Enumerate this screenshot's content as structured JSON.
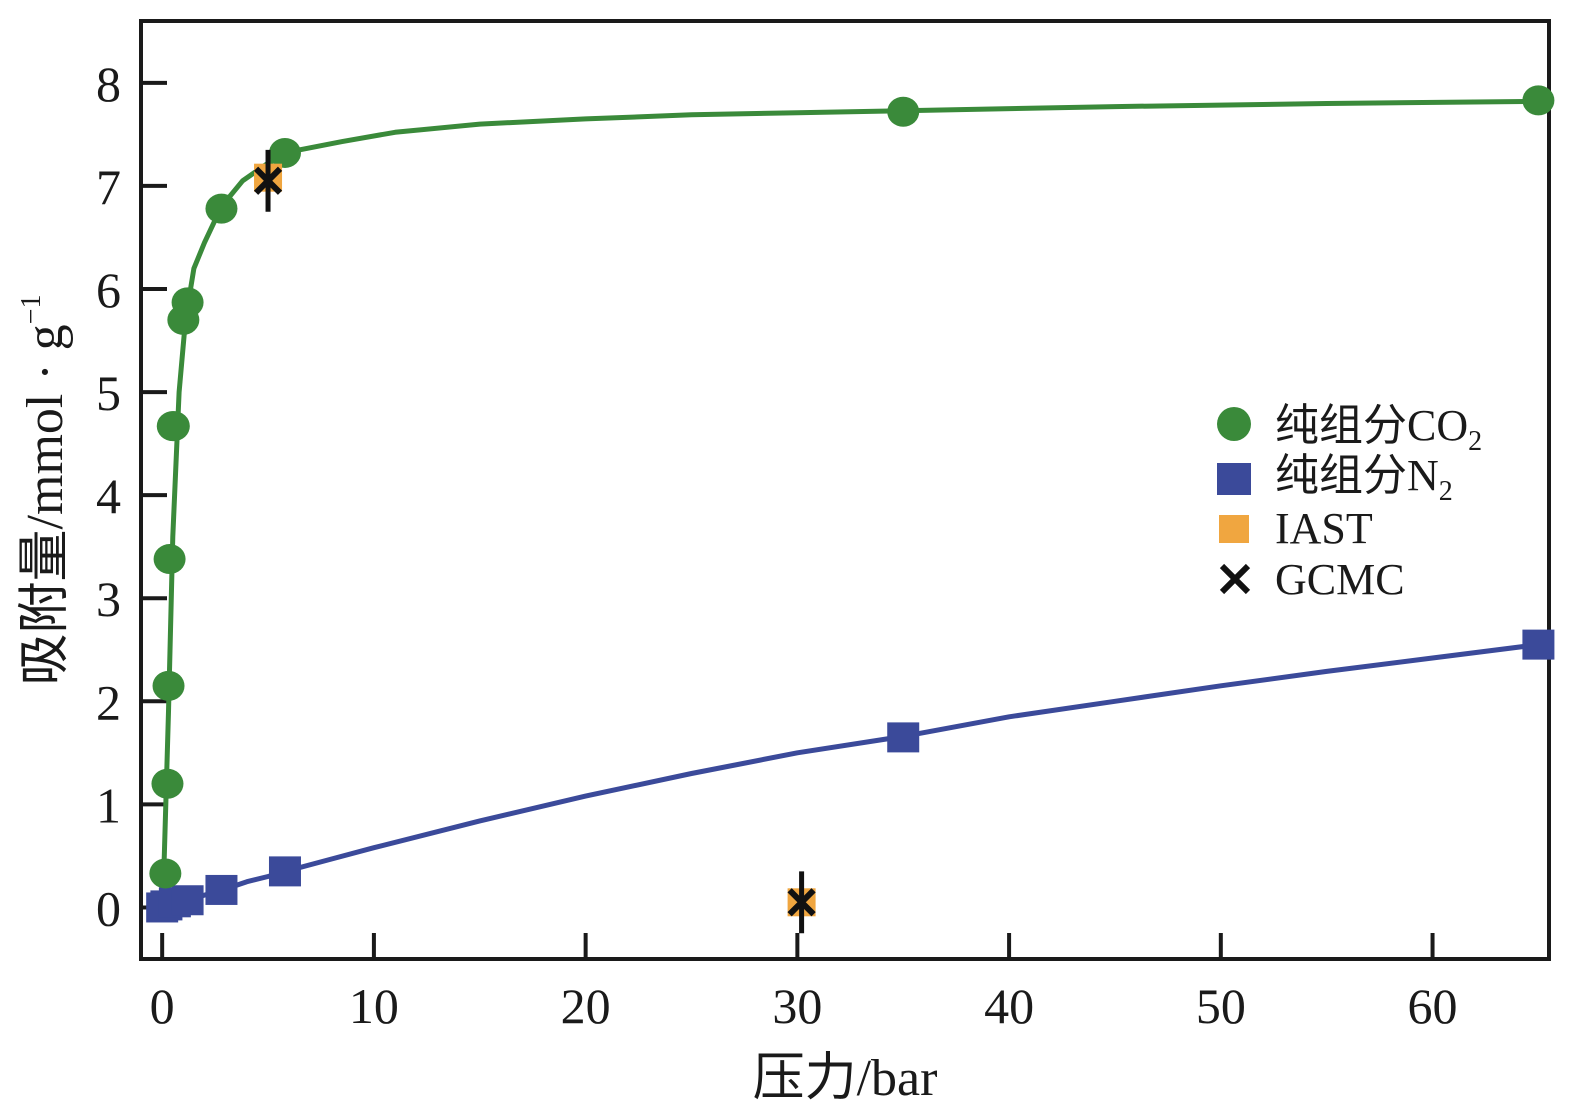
{
  "chart_data": {
    "type": "scatter",
    "title": "",
    "xlabel": "压力/bar",
    "ylabel": "吸附量/mmol · g",
    "ylabel_sup": "−1",
    "xlim": [
      -1,
      65.5
    ],
    "ylim": [
      -0.5,
      8.6
    ],
    "xticks": [
      0,
      10,
      20,
      30,
      40,
      50,
      60
    ],
    "yticks": [
      0,
      1,
      2,
      3,
      4,
      5,
      6,
      7,
      8
    ],
    "legend_position": "center-right",
    "series": [
      {
        "name": "纯组分CO",
        "name_sub": "2",
        "marker": "circle",
        "color": "#3a8a3a",
        "x": [
          0.15,
          0.25,
          0.3,
          0.35,
          0.5,
          0.55,
          1.0,
          1.2,
          2.8,
          5.8,
          35.0,
          65.0
        ],
        "y": [
          0.33,
          1.2,
          2.15,
          3.38,
          4.67,
          4.67,
          5.7,
          5.87,
          6.78,
          7.32,
          7.72,
          7.83
        ],
        "curve_x": [
          0.0,
          0.1,
          0.3,
          0.5,
          0.8,
          1.1,
          1.5,
          2.0,
          2.8,
          3.8,
          5.0,
          6.5,
          8.5,
          11,
          15,
          20,
          25,
          30,
          35,
          45,
          55,
          65
        ],
        "curve_y": [
          0.0,
          0.5,
          1.9,
          3.6,
          5.0,
          5.7,
          6.2,
          6.45,
          6.8,
          7.05,
          7.22,
          7.35,
          7.43,
          7.52,
          7.6,
          7.65,
          7.69,
          7.71,
          7.73,
          7.77,
          7.8,
          7.82
        ]
      },
      {
        "name": "纯组分N",
        "name_sub": "2",
        "marker": "square",
        "color": "#3b4a9a",
        "x": [
          0.0,
          0.2,
          0.6,
          1.2,
          2.8,
          5.8,
          35.0,
          65.0
        ],
        "y": [
          0.0,
          0.02,
          0.05,
          0.07,
          0.17,
          0.35,
          1.65,
          2.55
        ],
        "curve_x": [
          0,
          1,
          2,
          3,
          4,
          5,
          6,
          8,
          10,
          15,
          20,
          25,
          30,
          35,
          40,
          45,
          50,
          55,
          60,
          65
        ],
        "curve_y": [
          0,
          0.06,
          0.12,
          0.18,
          0.25,
          0.3,
          0.36,
          0.47,
          0.58,
          0.84,
          1.08,
          1.3,
          1.5,
          1.66,
          1.85,
          2.0,
          2.15,
          2.29,
          2.42,
          2.55
        ]
      },
      {
        "name": "IAST",
        "marker": "square",
        "color": "#f0a640",
        "x": [
          5.0,
          30.2
        ],
        "y": [
          7.08,
          0.05
        ]
      },
      {
        "name": "GCMC",
        "marker": "x",
        "color": "#111111",
        "x": [
          5.0,
          30.2
        ],
        "y": [
          7.05,
          0.05
        ],
        "error": [
          0.3,
          0.3
        ]
      }
    ]
  }
}
